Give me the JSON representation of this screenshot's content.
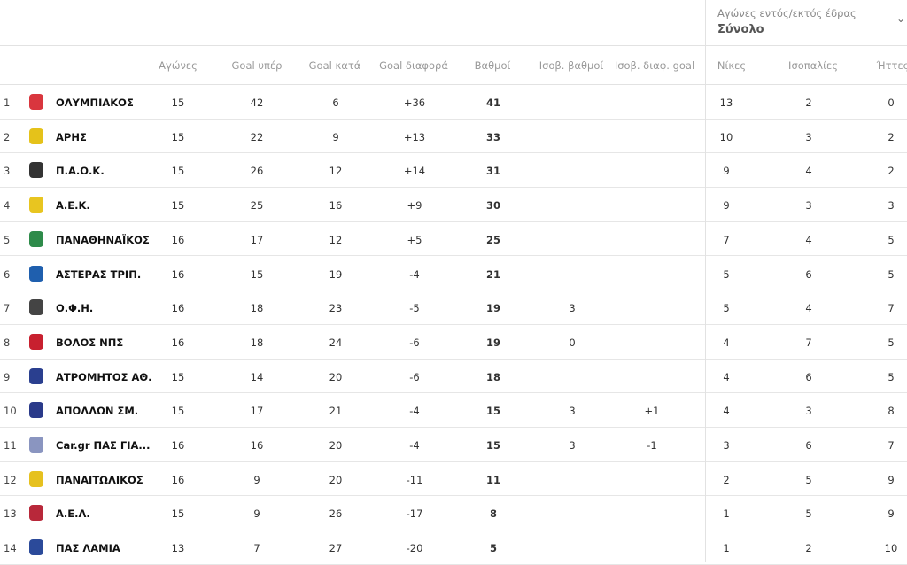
{
  "filter": {
    "label": "Αγώνες εντός/εκτός έδρας",
    "value": "Σύνολο"
  },
  "headers": [
    "Αγώνες",
    "Goal υπέρ",
    "Goal κατά",
    "Goal διαφορά",
    "Βαθμοί",
    "Ισοβ. βαθμοί",
    "Ισοβ. διαφ. goal",
    "Νίκες",
    "Ισοπαλίες",
    "Ήττες"
  ],
  "rows": [
    {
      "pos": "1",
      "team": "ΟΛΥΜΠΙΑΚΟΣ",
      "logo": "#d9363e",
      "played": "15",
      "gf": "42",
      "ga": "6",
      "gd": "+36",
      "pts": "41",
      "hpts": "",
      "hgd": "",
      "w": "13",
      "d": "2",
      "l": "0"
    },
    {
      "pos": "2",
      "team": "ΑΡΗΣ",
      "logo": "#e5c21a",
      "played": "15",
      "gf": "22",
      "ga": "9",
      "gd": "+13",
      "pts": "33",
      "hpts": "",
      "hgd": "",
      "w": "10",
      "d": "3",
      "l": "2"
    },
    {
      "pos": "3",
      "team": "Π.Α.Ο.Κ.",
      "logo": "#333333",
      "played": "15",
      "gf": "26",
      "ga": "12",
      "gd": "+14",
      "pts": "31",
      "hpts": "",
      "hgd": "",
      "w": "9",
      "d": "4",
      "l": "2"
    },
    {
      "pos": "4",
      "team": "Α.Ε.Κ.",
      "logo": "#e8c520",
      "played": "15",
      "gf": "25",
      "ga": "16",
      "gd": "+9",
      "pts": "30",
      "hpts": "",
      "hgd": "",
      "w": "9",
      "d": "3",
      "l": "3"
    },
    {
      "pos": "5",
      "team": "ΠΑΝΑΘΗΝΑΪΚΟΣ",
      "logo": "#2e8b4a",
      "played": "16",
      "gf": "17",
      "ga": "12",
      "gd": "+5",
      "pts": "25",
      "hpts": "",
      "hgd": "",
      "w": "7",
      "d": "4",
      "l": "5"
    },
    {
      "pos": "6",
      "team": "ΑΣΤΕΡΑΣ ΤΡΙΠ.",
      "logo": "#1f5fae",
      "played": "16",
      "gf": "15",
      "ga": "19",
      "gd": "-4",
      "pts": "21",
      "hpts": "",
      "hgd": "",
      "w": "5",
      "d": "6",
      "l": "5"
    },
    {
      "pos": "7",
      "team": "Ο.Φ.Η.",
      "logo": "#444444",
      "played": "16",
      "gf": "18",
      "ga": "23",
      "gd": "-5",
      "pts": "19",
      "hpts": "3",
      "hgd": "",
      "w": "5",
      "d": "4",
      "l": "7"
    },
    {
      "pos": "8",
      "team": "ΒΟΛΟΣ ΝΠΣ",
      "logo": "#c8202f",
      "played": "16",
      "gf": "18",
      "ga": "24",
      "gd": "-6",
      "pts": "19",
      "hpts": "0",
      "hgd": "",
      "w": "4",
      "d": "7",
      "l": "5"
    },
    {
      "pos": "9",
      "team": "ΑΤΡΟΜΗΤΟΣ ΑΘ.",
      "logo": "#2a3f8f",
      "played": "15",
      "gf": "14",
      "ga": "20",
      "gd": "-6",
      "pts": "18",
      "hpts": "",
      "hgd": "",
      "w": "4",
      "d": "6",
      "l": "5"
    },
    {
      "pos": "10",
      "team": "ΑΠΟΛΛΩΝ ΣΜ.",
      "logo": "#2a3a8a",
      "played": "15",
      "gf": "17",
      "ga": "21",
      "gd": "-4",
      "pts": "15",
      "hpts": "3",
      "hgd": "+1",
      "w": "4",
      "d": "3",
      "l": "8"
    },
    {
      "pos": "11",
      "team": "Car.gr ΠΑΣ ΓΙΑ...",
      "logo": "#8a95c0",
      "played": "16",
      "gf": "16",
      "ga": "20",
      "gd": "-4",
      "pts": "15",
      "hpts": "3",
      "hgd": "-1",
      "w": "3",
      "d": "6",
      "l": "7"
    },
    {
      "pos": "12",
      "team": "ΠΑΝΑΙΤΩΛΙΚΟΣ",
      "logo": "#e6c11f",
      "played": "16",
      "gf": "9",
      "ga": "20",
      "gd": "-11",
      "pts": "11",
      "hpts": "",
      "hgd": "",
      "w": "2",
      "d": "5",
      "l": "9"
    },
    {
      "pos": "13",
      "team": "Α.Ε.Λ.",
      "logo": "#b8283a",
      "played": "15",
      "gf": "9",
      "ga": "26",
      "gd": "-17",
      "pts": "8",
      "hpts": "",
      "hgd": "",
      "w": "1",
      "d": "5",
      "l": "9"
    },
    {
      "pos": "14",
      "team": "ΠΑΣ ΛΑΜΙΑ",
      "logo": "#2b4a9a",
      "played": "13",
      "gf": "7",
      "ga": "27",
      "gd": "-20",
      "pts": "5",
      "hpts": "",
      "hgd": "",
      "w": "1",
      "d": "2",
      "l": "10"
    }
  ]
}
